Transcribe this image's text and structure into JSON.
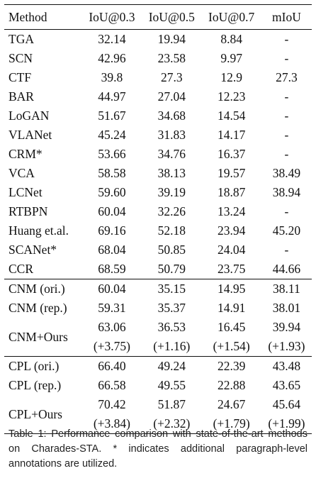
{
  "table": {
    "headers": [
      "Method",
      "IoU@0.3",
      "IoU@0.5",
      "IoU@0.7",
      "mIoU"
    ],
    "baselines": [
      {
        "method": "TGA",
        "v": [
          "32.14",
          "19.94",
          "8.84",
          "-"
        ]
      },
      {
        "method": "SCN",
        "v": [
          "42.96",
          "23.58",
          "9.97",
          "-"
        ]
      },
      {
        "method": "CTF",
        "v": [
          "39.8",
          "27.3",
          "12.9",
          "27.3"
        ]
      },
      {
        "method": "BAR",
        "v": [
          "44.97",
          "27.04",
          "12.23",
          "-"
        ]
      },
      {
        "method": "LoGAN",
        "v": [
          "51.67",
          "34.68",
          "14.54",
          "-"
        ]
      },
      {
        "method": "VLANet",
        "v": [
          "45.24",
          "31.83",
          "14.17",
          "-"
        ]
      },
      {
        "method": "CRM*",
        "v": [
          "53.66",
          "34.76",
          "16.37",
          "-"
        ]
      },
      {
        "method": "VCA",
        "v": [
          "58.58",
          "38.13",
          "19.57",
          "38.49"
        ]
      },
      {
        "method": "LCNet",
        "v": [
          "59.60",
          "39.19",
          "18.87",
          "38.94"
        ]
      },
      {
        "method": "RTBPN",
        "v": [
          "60.04",
          "32.26",
          "13.24",
          "-"
        ]
      },
      {
        "method": "Huang et.al.",
        "v": [
          "69.16",
          "52.18",
          "23.94",
          "45.20"
        ]
      },
      {
        "method": "SCANet*",
        "v": [
          "68.04",
          "50.85",
          "24.04",
          "-"
        ]
      },
      {
        "method": "CCR",
        "v": [
          "68.59",
          "50.79",
          "23.75",
          "44.66"
        ]
      }
    ],
    "cnm": {
      "rows": [
        {
          "method": "CNM (ori.)",
          "v": [
            "60.04",
            "35.15",
            "14.95",
            "38.11"
          ]
        },
        {
          "method": "CNM (rep.)",
          "v": [
            "59.31",
            "35.37",
            "14.91",
            "38.01"
          ]
        }
      ],
      "ours": {
        "method": "CNM+Ours",
        "v": [
          "63.06",
          "36.53",
          "16.45",
          "39.94"
        ],
        "gain": [
          "(+3.75)",
          "(+1.16)",
          "(+1.54)",
          "(+1.93)"
        ]
      }
    },
    "cpl": {
      "rows": [
        {
          "method": "CPL (ori.)",
          "v": [
            "66.40",
            "49.24",
            "22.39",
            "43.48"
          ]
        },
        {
          "method": "CPL (rep.)",
          "v": [
            "66.58",
            "49.55",
            "22.88",
            "43.65"
          ]
        }
      ],
      "ours": {
        "method": "CPL+Ours",
        "v": [
          "70.42",
          "51.87",
          "24.67",
          "45.64"
        ],
        "gain": [
          "(+3.84)",
          "(+2.32)",
          "(+1.79)",
          "(+1.99)"
        ]
      }
    }
  },
  "caption": "Table 1: Performance comparison with state-of-the-art methods on Charades-STA. * indicates additional paragraph-level annotations are utilized."
}
